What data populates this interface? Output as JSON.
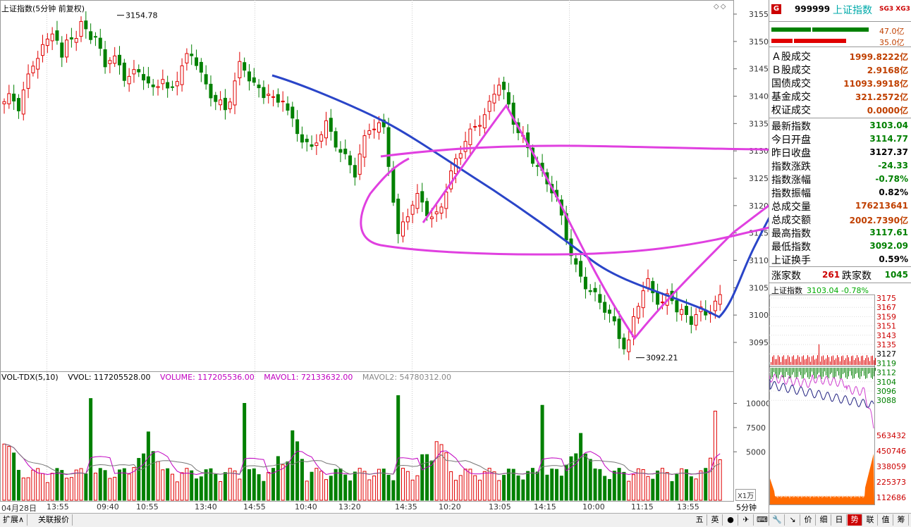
{
  "chart": {
    "title": "上证指数(5分钟 前复权)",
    "corner_icons": "◇◇",
    "high_label": "3154.78",
    "low_label": "3092.21",
    "price_ticks": [
      "3155",
      "3150",
      "3145",
      "3140",
      "3135",
      "3130",
      "3125",
      "3120",
      "3115",
      "3110",
      "3105",
      "3100",
      "3095"
    ],
    "volume_ticks": [
      "10000",
      "7500",
      "5000"
    ],
    "volume_unit": "X1万",
    "period": "5分钟",
    "time_labels": [
      "04月28日",
      "13:55",
      "09:40",
      "10:55",
      "13:40",
      "14:55",
      "10:40",
      "13:20",
      "14:35",
      "10:20",
      "13:05",
      "14:15",
      "10:00",
      "11:15",
      "13:55"
    ],
    "volume_legend": {
      "indicator": "VOL-TDX(5,10)",
      "vvol": "VVOL: 117205528.00",
      "volume": "VOLUME: 117205536.00",
      "mavol1": "MAVOL1: 72133632.00",
      "mavol2": "MAVOL2: 54780312.00"
    },
    "colors": {
      "up": "#e00000",
      "down": "#008000",
      "ma_blue": "#2a45c8",
      "magenta": "#e040e0"
    }
  },
  "chart_data": {
    "type": "candlestick",
    "ylim": [
      3090,
      3157
    ],
    "annotations": [
      "3154.78",
      "3092.21"
    ],
    "close_path": [
      3139,
      3140,
      3138,
      3142,
      3146,
      3148,
      3150,
      3153,
      3146,
      3152,
      3150,
      3154,
      3151,
      3150,
      3146,
      3147,
      3146,
      3143,
      3144,
      3145,
      3142,
      3141,
      3144,
      3140,
      3143,
      3146,
      3148,
      3146,
      3142,
      3140,
      3139,
      3137,
      3142,
      3146,
      3144,
      3142,
      3140,
      3141,
      3138,
      3140,
      3136,
      3133,
      3132,
      3130,
      3133,
      3135,
      3132,
      3130,
      3128,
      3126,
      3131,
      3134,
      3135,
      3134,
      3125,
      3114,
      3118,
      3120,
      3122,
      3119,
      3117,
      3120,
      3124,
      3128,
      3131,
      3133,
      3135,
      3136,
      3139,
      3143,
      3140,
      3136,
      3133,
      3131,
      3128,
      3126,
      3124,
      3122,
      3117,
      3112,
      3108,
      3106,
      3104,
      3103,
      3101,
      3099,
      3096,
      3093,
      3100,
      3104,
      3106,
      3103,
      3102,
      3104,
      3101,
      3100,
      3099,
      3101,
      3100,
      3102,
      3103
    ]
  },
  "side": {
    "badge": "G",
    "code": "999999",
    "name": "上证指数",
    "sg": "SG3",
    "xg": "XG3",
    "bar1": "47.0亿",
    "bar2": "35.0亿",
    "stats": [
      {
        "label": "Ａ股成交",
        "value": "1999.8222亿",
        "color": "#c04000"
      },
      {
        "label": "Ｂ股成交",
        "value": "2.9168亿",
        "color": "#c04000"
      },
      {
        "label": "国债成交",
        "value": "11093.9918亿",
        "color": "#c04000"
      },
      {
        "label": "基金成交",
        "value": "321.2572亿",
        "color": "#c04000"
      },
      {
        "label": "权证成交",
        "value": "0.0000亿",
        "color": "#c04000"
      },
      {
        "label": "最新指数",
        "value": "3103.04",
        "color": "#008000"
      },
      {
        "label": "今日开盘",
        "value": "3114.77",
        "color": "#008000"
      },
      {
        "label": "昨日收盘",
        "value": "3127.37",
        "color": "#000000"
      },
      {
        "label": "指数涨跌",
        "value": "-24.33",
        "color": "#008000"
      },
      {
        "label": "指数涨幅",
        "value": "-0.78%",
        "color": "#008000"
      },
      {
        "label": "指数振幅",
        "value": "0.82%",
        "color": "#000000"
      },
      {
        "label": "总成交量",
        "value": "176213641",
        "color": "#c04000"
      },
      {
        "label": "总成交额",
        "value": "2002.7390亿",
        "color": "#c04000"
      },
      {
        "label": "最高指数",
        "value": "3117.61",
        "color": "#008000"
      },
      {
        "label": "最低指数",
        "value": "3092.09",
        "color": "#008000"
      },
      {
        "label": "上证换手",
        "value": "0.59%",
        "color": "#000000"
      }
    ],
    "advance_label": "涨家数",
    "advance_value": "261",
    "decline_label": "跌家数",
    "decline_value": "1045",
    "mini_title": "上证指数",
    "mini_value": "3103.04 -0.78%",
    "mini_price_ticks": [
      "3175",
      "3167",
      "3159",
      "3151",
      "3143",
      "3135",
      "3127",
      "3119",
      "3112",
      "3104",
      "3096",
      "3088"
    ],
    "mini_vol_ticks": [
      "563432",
      "450746",
      "338059",
      "225373",
      "112686"
    ]
  },
  "bottom": {
    "tabs": [
      "扩展∧",
      "关联报价"
    ],
    "right_tabs": [
      "五",
      "英",
      "●",
      "✈",
      "⌨",
      "🔧",
      "↘",
      "价",
      "细",
      "日",
      "势",
      "联",
      "值",
      "筹"
    ]
  }
}
